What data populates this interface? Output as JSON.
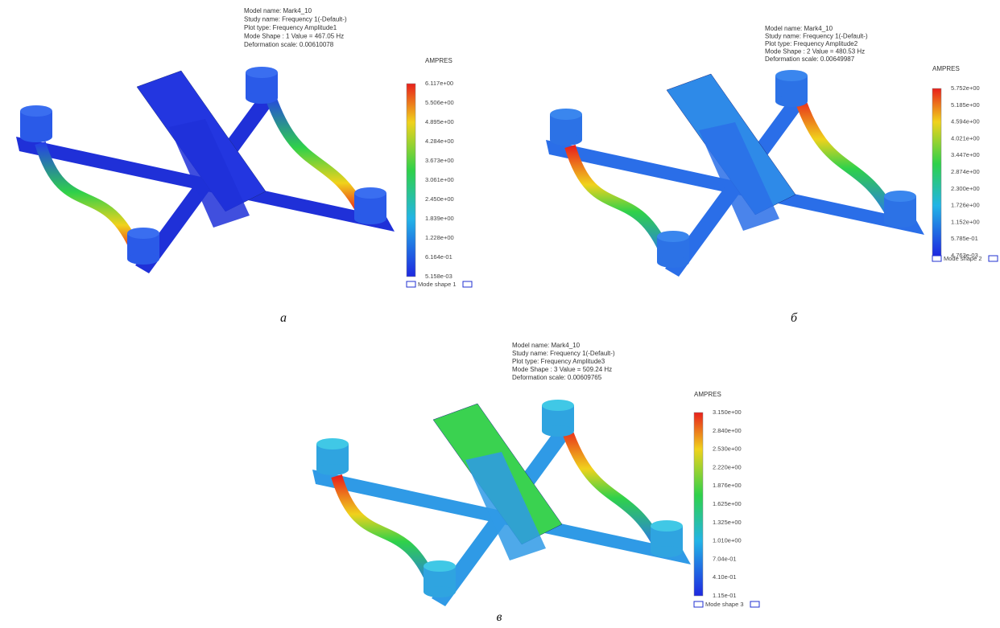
{
  "panels": [
    {
      "header": [
        "Model name: Mark4_10",
        "Study name: Frequency 1(-Default-)",
        "Plot type: Frequency Amplitude1",
        "Mode Shape : 1 Value = 467.05 Hz",
        "Deformation scale: 0.00610078"
      ],
      "legend_title": "AMPRES",
      "legend_ticks": [
        "6.117e+00",
        "5.506e+00",
        "4.895e+00",
        "4.284e+00",
        "3.673e+00",
        "3.061e+00",
        "2.450e+00",
        "1.839e+00",
        "1.228e+00",
        "6.164e-01",
        "5.158e-03"
      ],
      "mode_label": "Mode shape 1",
      "caption": "а"
    },
    {
      "header": [
        "Model name: Mark4_10",
        "Study name: Frequency 1(-Default-)",
        "Plot type: Frequency Amplitude2",
        "Mode Shape : 2 Value = 480.53 Hz",
        "Deformation scale: 0.00649987"
      ],
      "legend_title": "AMPRES",
      "legend_ticks": [
        "5.752e+00",
        "5.185e+00",
        "4.594e+00",
        "4.021e+00",
        "3.447e+00",
        "2.874e+00",
        "2.300e+00",
        "1.726e+00",
        "1.152e+00",
        "5.785e-01",
        "4.763e-03"
      ],
      "mode_label": "Mode shape 2",
      "caption": "б"
    },
    {
      "header": [
        "Model name: Mark4_10",
        "Study name: Frequency 1(-Default-)",
        "Plot type: Frequency Amplitude3",
        "Mode Shape : 3 Value = 509.24 Hz",
        "Deformation scale: 0.00609765"
      ],
      "legend_title": "AMPRES",
      "legend_ticks": [
        "3.150e+00",
        "2.840e+00",
        "2.530e+00",
        "2.220e+00",
        "1.876e+00",
        "1.625e+00",
        "1.325e+00",
        "1.010e+00",
        "7.04e-01",
        "4.10e-01",
        "1.15e-01"
      ],
      "mode_label": "Mode shape 3",
      "caption": "в"
    }
  ]
}
